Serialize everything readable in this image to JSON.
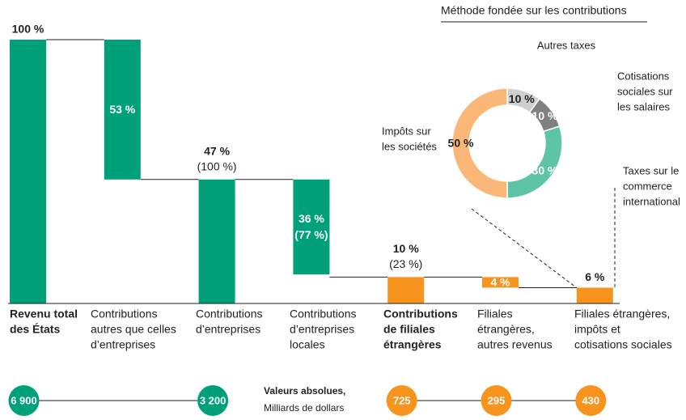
{
  "chart_data": [
    {
      "type": "waterfall",
      "categories": [
        [
          "Revenu total",
          "des États"
        ],
        [
          "Contributions",
          "autres que celles",
          "d’entreprises"
        ],
        [
          "Contributions",
          "d’entreprises"
        ],
        [
          "Contributions",
          "d’entreprises",
          "locales"
        ],
        [
          "Contributions",
          "de filiales",
          "étrangères"
        ],
        [
          "Filiales",
          "étrangères,",
          "autres revenus"
        ],
        [
          "Filiales étrangères,",
          "impôts et",
          "cotisations sociales"
        ]
      ],
      "bold_categories": [
        0,
        4
      ],
      "values": [
        100,
        53,
        47,
        36,
        10,
        4,
        6
      ],
      "value_labels": [
        "100 %",
        "53 %",
        "47 %",
        "36 %",
        "10 %",
        "4 %",
        "6 %"
      ],
      "share_labels": [
        null,
        null,
        "(100 %)",
        "(77 %)",
        "(23 %)",
        null,
        null
      ],
      "kinds": [
        "total",
        "decrease",
        "total",
        "decrease",
        "total",
        "decrease",
        "total"
      ],
      "colors": [
        "#00a07a",
        "#00a07a",
        "#00a07a",
        "#00a07a",
        "#f7941d",
        "#f7941d",
        "#f7941d"
      ],
      "ylim": [
        0,
        100
      ],
      "absolute_title": [
        "Valeurs absolues,",
        "Milliards de dollars"
      ],
      "absolute_values": [
        6900,
        null,
        3200,
        null,
        725,
        295,
        430
      ],
      "absolute_labels": [
        "6 900",
        null,
        "3 200",
        null,
        "725",
        "295",
        "430"
      ]
    },
    {
      "type": "donut",
      "title": "Méthode fondée sur les contributions",
      "categories": [
        [
          "Autres taxes"
        ],
        [
          "Cotisations",
          "sociales sur",
          "les salaires"
        ],
        [
          "Taxes sur le",
          "commerce",
          "international"
        ],
        [
          "Impôts sur",
          "les sociétés"
        ]
      ],
      "values": [
        10,
        10,
        30,
        50
      ],
      "value_labels": [
        "10 %",
        "10 %",
        "30 %",
        "50 %"
      ],
      "colors": [
        "#cfcfcf",
        "#808080",
        "#5ec4a6",
        "#fbb778"
      ]
    }
  ]
}
